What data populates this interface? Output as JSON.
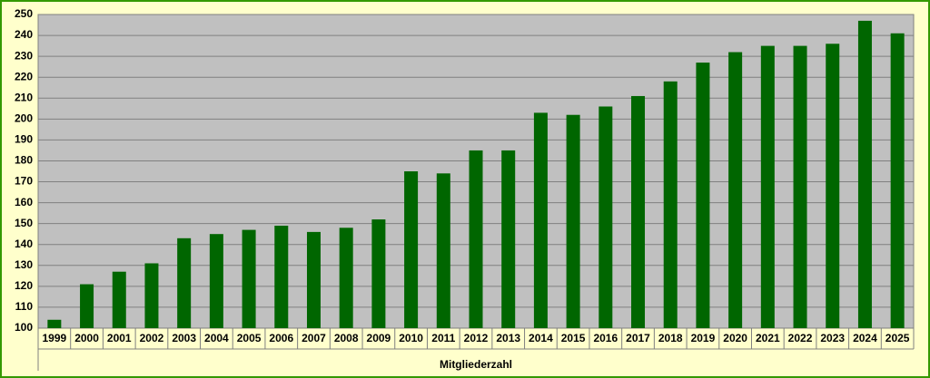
{
  "chart_data": {
    "type": "bar",
    "x_label": "Mitgliederzahl",
    "categories": [
      "1999",
      "2000",
      "2001",
      "2002",
      "2003",
      "2004",
      "2005",
      "2006",
      "2007",
      "2008",
      "2009",
      "2010",
      "2011",
      "2012",
      "2013",
      "2014",
      "2015",
      "2016",
      "2017",
      "2018",
      "2019",
      "2020",
      "2021",
      "2022",
      "2023",
      "2024",
      "2025"
    ],
    "values": [
      104,
      121,
      127,
      131,
      143,
      145,
      147,
      149,
      146,
      148,
      152,
      175,
      174,
      185,
      185,
      203,
      202,
      206,
      211,
      218,
      227,
      232,
      235,
      235,
      236,
      247,
      241
    ],
    "color": "#006600",
    "ylim": [
      100,
      250
    ],
    "yticks": [
      100,
      110,
      120,
      130,
      140,
      150,
      160,
      170,
      180,
      190,
      200,
      210,
      220,
      230,
      240,
      250
    ],
    "grid": true
  }
}
